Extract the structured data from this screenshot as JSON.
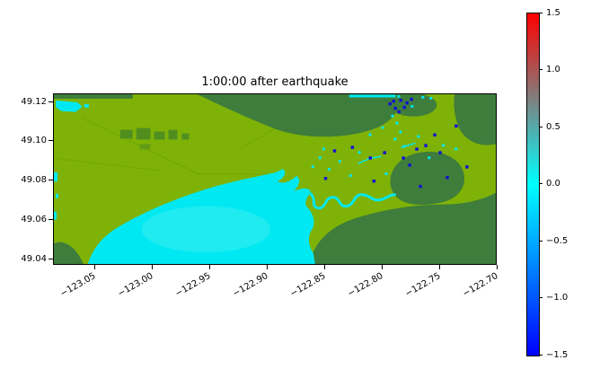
{
  "title": "1:00:00 after earthquake",
  "axes": {
    "y_tick_labels": [
      "49.12",
      "49.10",
      "49.08",
      "49.06",
      "49.04"
    ],
    "x_tick_labels": [
      "−123.05",
      "−123.00",
      "−122.95",
      "−122.90",
      "−122.85",
      "−122.80",
      "−122.75",
      "−122.70"
    ]
  },
  "colorbar": {
    "tick_labels": [
      "1.5",
      "1.0",
      "0.5",
      "0.0",
      "−0.5",
      "−1.0",
      "−1.5"
    ],
    "gradient": {
      "top": "#ff0000",
      "middle": "#00ffff",
      "bottom": "#0000ff"
    }
  },
  "map": {
    "colors": {
      "land_low": "#7eb207",
      "land_high": "#3e7d3c",
      "fields": "#4c8c22",
      "water": "#00e9f2",
      "water_light": "#45edf0",
      "deep_negative": "#1414cf",
      "roads": "#689e04"
    },
    "blue_dots": [
      [
        378,
        6
      ],
      [
        386,
        5
      ],
      [
        393,
        8
      ],
      [
        380,
        14
      ],
      [
        390,
        13
      ],
      [
        398,
        4
      ],
      [
        374,
        9
      ],
      [
        384,
        18
      ],
      [
        312,
        62
      ],
      [
        332,
        58
      ],
      [
        352,
        70
      ],
      [
        368,
        64
      ],
      [
        396,
        78
      ],
      [
        414,
        56
      ],
      [
        424,
        44
      ],
      [
        438,
        92
      ],
      [
        302,
        93
      ],
      [
        356,
        96
      ],
      [
        408,
        102
      ],
      [
        430,
        64
      ],
      [
        448,
        34
      ],
      [
        460,
        80
      ],
      [
        389,
        70
      ],
      [
        404,
        60
      ]
    ],
    "cyan_dots": [
      [
        384,
        1
      ],
      [
        399,
        12
      ],
      [
        377,
        23
      ],
      [
        382,
        31
      ],
      [
        386,
        41
      ],
      [
        380,
        49
      ],
      [
        296,
        70
      ],
      [
        318,
        74
      ],
      [
        340,
        64
      ],
      [
        306,
        83
      ],
      [
        390,
        57
      ],
      [
        406,
        46
      ],
      [
        418,
        70
      ],
      [
        434,
        56
      ],
      [
        352,
        44
      ],
      [
        366,
        36
      ],
      [
        448,
        60
      ],
      [
        330,
        90
      ],
      [
        370,
        88
      ],
      [
        411,
        2
      ],
      [
        420,
        3
      ],
      [
        300,
        60
      ],
      [
        288,
        80
      ]
    ]
  },
  "chart_data": {
    "type": "heatmap",
    "title": "1:00:00 after earthquake",
    "xlabel": "",
    "ylabel": "",
    "x_ticks": [
      -123.05,
      -123.0,
      -122.95,
      -122.9,
      -122.85,
      -122.8,
      -122.75,
      -122.7
    ],
    "y_ticks": [
      49.04,
      49.06,
      49.08,
      49.1,
      49.12
    ],
    "xlim": [
      -123.085,
      -122.7
    ],
    "ylim": [
      49.037,
      49.125
    ],
    "x_tick_rotation_deg": 30,
    "grid": false,
    "colorbar": {
      "range": [
        -1.5,
        1.5
      ],
      "ticks": [
        1.5,
        1.0,
        0.5,
        0.0,
        -0.5,
        -1.0,
        -1.5
      ],
      "colormap_stops": [
        {
          "value": -1.5,
          "color": "#0000ff"
        },
        {
          "value": 0.0,
          "color": "#00ffff"
        },
        {
          "value": 1.5,
          "color": "#ff0000"
        }
      ]
    },
    "features": [
      {
        "name": "bay_water_surface",
        "kind": "sea_surface_elevation_m",
        "value": 0.0,
        "lon_range": [
          -123.01,
          -122.84
        ],
        "lat_range": [
          49.037,
          49.075
        ]
      },
      {
        "name": "tidal_river_channel",
        "kind": "sea_surface_elevation_m",
        "value": 0.0,
        "lon_range": [
          -122.87,
          -122.79
        ],
        "lat_range": [
          49.055,
          49.07
        ]
      },
      {
        "name": "drawdown_spot_cluster",
        "kind": "sea_surface_elevation_m",
        "value": -1.0,
        "lon_range": [
          -122.81,
          -122.74
        ],
        "lat_range": [
          49.09,
          49.12
        ]
      },
      {
        "name": "lowland_plain",
        "kind": "land_topography",
        "color": "#7eb207",
        "note": "yellow-green low elevation delta covering most of map"
      },
      {
        "name": "uplands",
        "kind": "land_topography",
        "color": "#3e7d3c",
        "note": "dark green hills: north-center band, north-east corner, large south-east mass, small south-west corner"
      }
    ]
  }
}
